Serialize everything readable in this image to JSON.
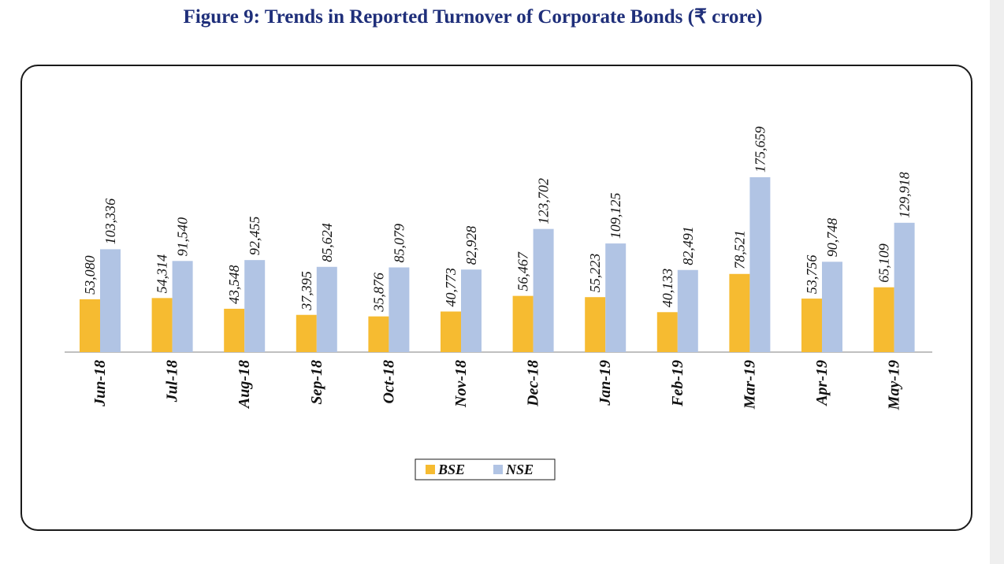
{
  "title": "Figure 9: Trends in Reported Turnover of  Corporate Bonds (₹ crore)",
  "colors": {
    "bse": "#f6bb31",
    "nse": "#b1c4e4",
    "title": "#1f2f7a",
    "axis": "#808080"
  },
  "chart_data": {
    "type": "bar",
    "title": "Figure 9: Trends in Reported Turnover of  Corporate Bonds (₹ crore)",
    "xlabel": "",
    "ylabel": "",
    "categories": [
      "Jun-18",
      "Jul-18",
      "Aug-18",
      "Sep-18",
      "Oct-18",
      "Nov-18",
      "Dec-18",
      "Jan-19",
      "Feb-19",
      "Mar-19",
      "Apr-19",
      "May-19"
    ],
    "series": [
      {
        "name": "BSE",
        "color": "#f6bb31",
        "values": [
          53080,
          54314,
          43548,
          37395,
          35876,
          40773,
          56467,
          55223,
          40133,
          78521,
          53756,
          65109
        ],
        "labels": [
          "53,080",
          "54,314",
          "43,548",
          "37,395",
          "35,876",
          "40,773",
          "56,467",
          "55,223",
          "40,133",
          "78,521",
          "53,756",
          "65,109"
        ]
      },
      {
        "name": "NSE",
        "color": "#b1c4e4",
        "values": [
          103336,
          91540,
          92455,
          85624,
          85079,
          82928,
          123702,
          109125,
          82491,
          175659,
          90748,
          129918
        ],
        "labels": [
          "103,336",
          "91,540",
          "92,455",
          "85,624",
          "85,079",
          "82,928",
          "123,702",
          "109,125",
          "82,491",
          "175,659",
          "90,748",
          "129,918"
        ]
      }
    ],
    "ylim": [
      0,
      175659
    ],
    "grid": false,
    "data_labels": "rotated-vertical",
    "legend_placement": "bottom-center"
  }
}
